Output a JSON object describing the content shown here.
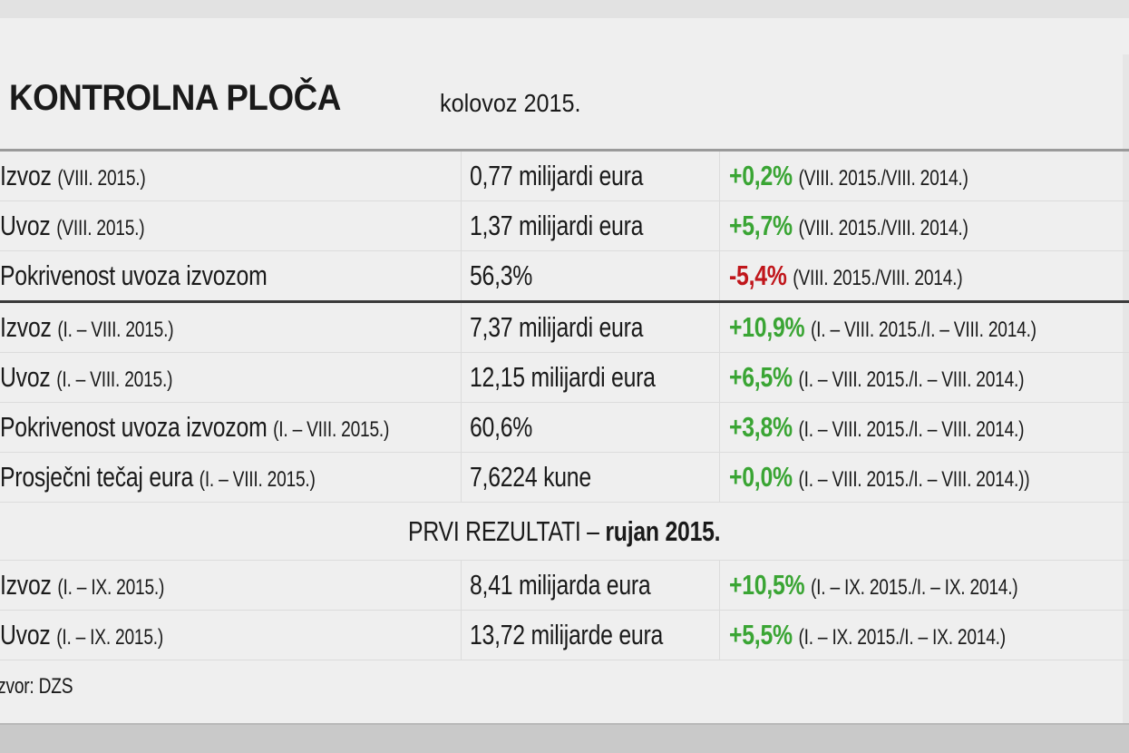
{
  "header": {
    "title": "KONTROLNA PLOČA",
    "period": "kolovoz 2015."
  },
  "colors": {
    "positive": "#3aa534",
    "negative": "#c0161b"
  },
  "rows": [
    {
      "label": "Izvoz",
      "period": "(VIII. 2015.)",
      "value": "0,77 milijardi eura",
      "change": "+0,2%",
      "change_period": "(VIII. 2015./VIII. 2014.)",
      "trend": "positive"
    },
    {
      "label": "Uvoz",
      "period": "(VIII. 2015.)",
      "value": "1,37 milijardi eura",
      "change": "+5,7%",
      "change_period": "(VIII. 2015./VIII. 2014.)",
      "trend": "positive"
    },
    {
      "label": "Pokrivenost uvoza izvozom",
      "period": "",
      "value": "56,3%",
      "change": "-5,4%",
      "change_period": "(VIII. 2015./VIII. 2014.)",
      "trend": "negative"
    },
    {
      "label": "Izvoz",
      "period": "(I. – VIII. 2015.)",
      "value": "7,37 milijardi eura",
      "change": "+10,9%",
      "change_period": "(I. – VIII. 2015./I. – VIII. 2014.)",
      "trend": "positive"
    },
    {
      "label": "Uvoz",
      "period": "(I. – VIII. 2015.)",
      "value": "12,15 milijardi eura",
      "change": "+6,5%",
      "change_period": "(I. – VIII. 2015./I. – VIII. 2014.)",
      "trend": "positive"
    },
    {
      "label": "Pokrivenost uvoza izvozom",
      "period": "(I. – VIII. 2015.)",
      "value": "60,6%",
      "change": "+3,8%",
      "change_period": "(I. – VIII. 2015./I. – VIII. 2014.)",
      "trend": "positive"
    },
    {
      "label": "Prosječni tečaj eura",
      "period": "(I. – VIII. 2015.)",
      "value": "7,6224 kune",
      "change": "+0,0%",
      "change_period": "(I. – VIII. 2015./I. – VIII. 2014.))",
      "trend": "positive"
    }
  ],
  "section": {
    "label": "PRVI REZULTATI –",
    "label_bold": "rujan 2015."
  },
  "rows2": [
    {
      "label": "Izvoz",
      "period": "(I. – IX. 2015.)",
      "value": "8,41 milijarda eura",
      "change": "+10,5%",
      "change_period": "(I. – IX. 2015./I. – IX. 2014.)",
      "trend": "positive"
    },
    {
      "label": "Uvoz",
      "period": "(I. – IX. 2015.)",
      "value": "13,72 milijarde eura",
      "change": "+5,5%",
      "change_period": "(I. – IX. 2015./I. – IX. 2014.)",
      "trend": "positive"
    }
  ],
  "source": "Izvor: DZS"
}
